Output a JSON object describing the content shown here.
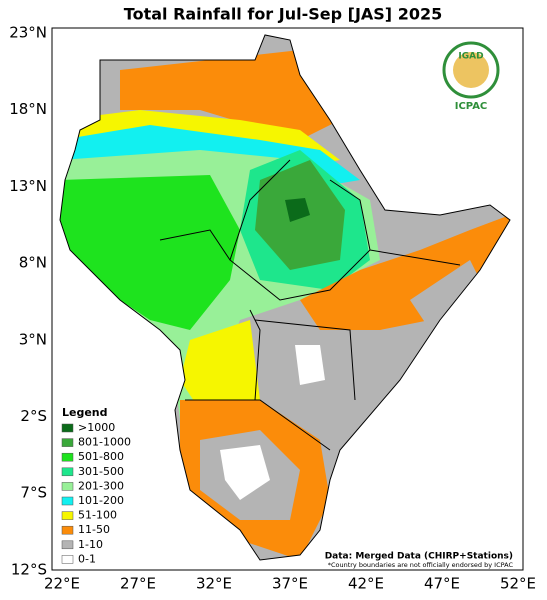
{
  "map": {
    "title": "Total Rainfall for Jul-Sep [JAS] 2025",
    "lat_labels": [
      "23°N",
      "18°N",
      "13°N",
      "8°N",
      "3°N",
      "2°S",
      "7°S",
      "12°S"
    ],
    "lon_labels": [
      "22°E",
      "27°E",
      "32°E",
      "37°E",
      "42°E",
      "47°E",
      "52°E"
    ],
    "legend": {
      "title": "Legend",
      "items": [
        {
          "label": ">1000",
          "color": "#0b6b1a"
        },
        {
          "label": "801-1000",
          "color": "#3aa83a"
        },
        {
          "label": "501-800",
          "color": "#1ee31e"
        },
        {
          "label": "301-500",
          "color": "#1ee68c"
        },
        {
          "label": "201-300",
          "color": "#98f098"
        },
        {
          "label": "101-200",
          "color": "#12f0f0"
        },
        {
          "label": "51-100",
          "color": "#f6f600"
        },
        {
          "label": "11-50",
          "color": "#fb8c0a"
        },
        {
          "label": "1-10",
          "color": "#b4b4b4"
        },
        {
          "label": "0-1",
          "color": "#ffffff"
        }
      ]
    },
    "logo": {
      "top": "IGAD",
      "bottom": "ICPAC"
    },
    "source": "Data: Merged Data (CHIRP+Stations)",
    "disclaimer": "*Country boundaries are not officially endorsed by ICPAC"
  }
}
